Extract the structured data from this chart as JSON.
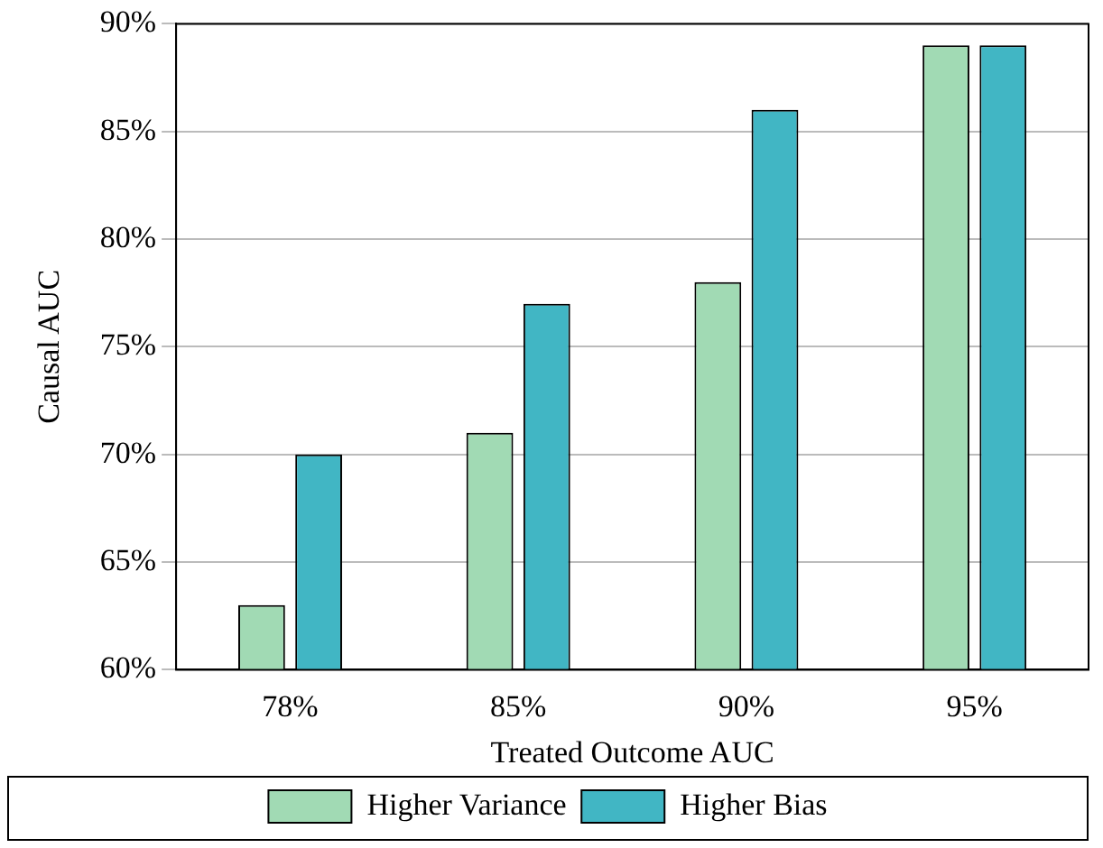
{
  "chart_data": {
    "type": "bar",
    "xlabel": "Treated Outcome AUC",
    "ylabel": "Causal AUC",
    "categories": [
      "78%",
      "85%",
      "90%",
      "95%"
    ],
    "series": [
      {
        "name": "Higher Variance",
        "color": "#a1dab4",
        "values": [
          63,
          71,
          78,
          89
        ]
      },
      {
        "name": "Higher Bias",
        "color": "#41b6c4",
        "values": [
          70,
          77,
          86,
          89
        ]
      }
    ],
    "ylim": [
      60,
      90
    ],
    "yticks": [
      {
        "value": 60,
        "label": "60%"
      },
      {
        "value": 65,
        "label": "65%"
      },
      {
        "value": 70,
        "label": "70%"
      },
      {
        "value": 75,
        "label": "75%"
      },
      {
        "value": 80,
        "label": "80%"
      },
      {
        "value": 85,
        "label": "85%"
      },
      {
        "value": 90,
        "label": "90%"
      }
    ],
    "grid": "y",
    "legend": "bottom"
  }
}
